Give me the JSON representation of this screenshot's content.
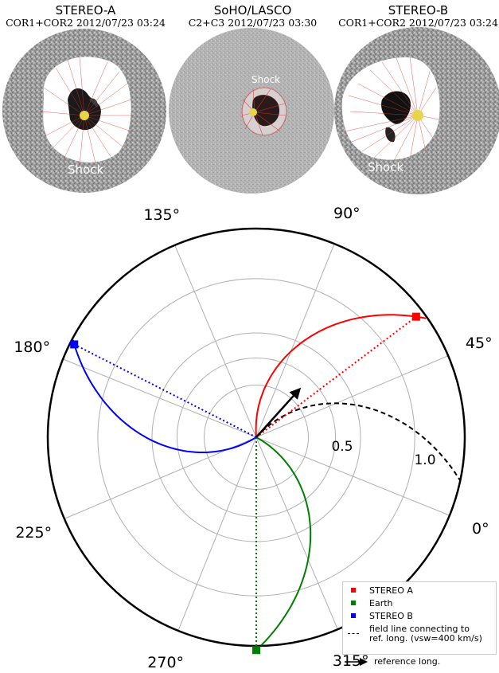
{
  "panels": [
    {
      "name": "STEREO-A",
      "subtitle": "COR1+COR2 2012/07/23 03:24",
      "label": "Shock"
    },
    {
      "name": "SoHO/LASCO",
      "subtitle": "C2+C3 2012/07/23 03:30",
      "label": "Shock"
    },
    {
      "name": "STEREO-B",
      "subtitle": "COR1+COR2 2012/07/23 03:24",
      "label": "Shock"
    }
  ],
  "chart_data": {
    "type": "polar",
    "angle_ticks": [
      "0°",
      "45°",
      "90°",
      "135°",
      "180°",
      "225°",
      "270°",
      "315°"
    ],
    "angle_tick_values": [
      0,
      45,
      90,
      135,
      180,
      225,
      270,
      315
    ],
    "angular_offset_deg": -22,
    "radial_tick_labels": [
      "0.5",
      "1.0"
    ],
    "radial_tick_values": [
      0.5,
      1.0
    ],
    "radial_gridlines": [
      0.5,
      1.0
    ],
    "r_max": 1.0,
    "grid": true,
    "legend_position": "bottom-right",
    "points": [
      {
        "name": "STEREO A",
        "r": 0.96,
        "angle_deg": 59,
        "color": "#ff0000"
      },
      {
        "name": "Earth",
        "r": 1.02,
        "angle_deg": 292,
        "color": "#008000"
      },
      {
        "name": "STEREO B",
        "r": 0.98,
        "angle_deg": 175,
        "color": "#0000ff"
      }
    ],
    "reference": {
      "name": "reference long.",
      "angle_deg": 70,
      "r": 0.32,
      "color": "#000000"
    },
    "field_line": {
      "name": "field line connecting to\nref. long. (vsw=400 km/s)",
      "line1": "field line connecting to",
      "line2": "ref. long. (vsw=400 km/s)",
      "vsw_km_s": 400,
      "color": "#000000"
    }
  },
  "colors": {
    "stereo_a": "#ff0000",
    "earth": "#008000",
    "stereo_b": "#0000ff",
    "grid": "#b0b0b0"
  }
}
